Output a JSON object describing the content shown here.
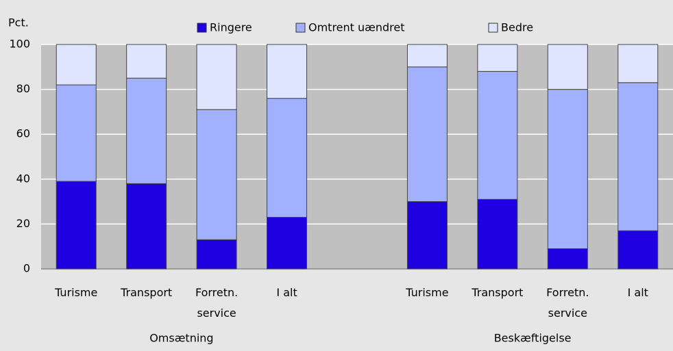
{
  "chart_data": {
    "type": "stacked_bar",
    "y_label": "Pct.",
    "categories": [
      "Turisme",
      "Transport",
      "Forretn.\nservice",
      "I alt",
      null,
      "Turisme",
      "Transport",
      "Forretn.\nservice",
      "I alt"
    ],
    "groups": [
      "Omsætning",
      "Beskæftigelse"
    ],
    "series": [
      {
        "name": "Ringere",
        "color": "#1f00e0",
        "values": [
          39,
          38,
          13,
          23,
          null,
          30,
          31,
          9,
          17
        ]
      },
      {
        "name": "Omtrent uændret",
        "color": "#a1b0ff",
        "values": [
          43,
          47,
          58,
          53,
          null,
          60,
          57,
          71,
          66
        ]
      },
      {
        "name": "Bedre",
        "color": "#dfe4ff",
        "values": [
          18,
          15,
          29,
          24,
          null,
          10,
          12,
          20,
          17
        ]
      }
    ],
    "ylim": [
      0,
      100
    ],
    "yticks": [
      0,
      20,
      40,
      60,
      80,
      100
    ],
    "grid": true,
    "legend": "top"
  }
}
